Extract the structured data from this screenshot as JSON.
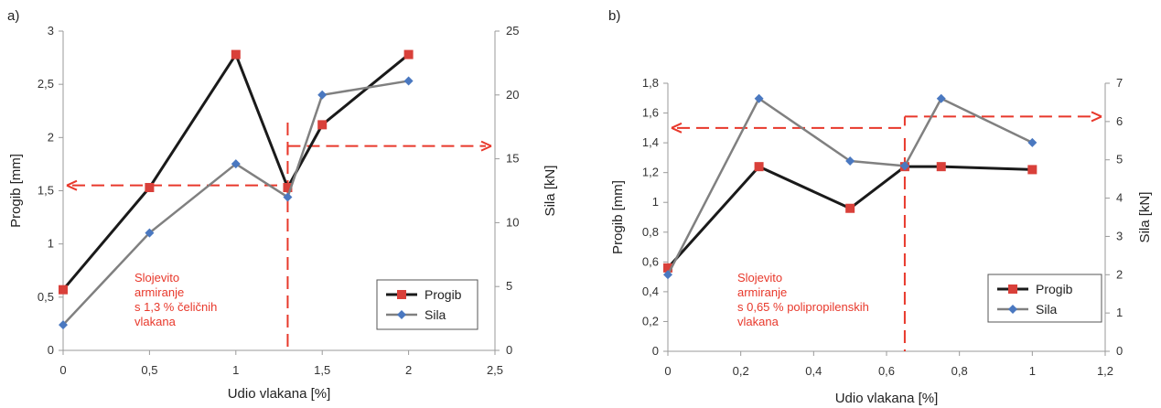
{
  "chart_data": [
    {
      "type": "line",
      "panel_label": "a)",
      "xlabel": "Udio vlakana [%]",
      "ylabel_left": "Progib [mm]",
      "ylabel_right": "Sila [kN]",
      "x_ticks": [
        "0",
        "0,5",
        "1",
        "1,5",
        "2",
        "2,5"
      ],
      "y_left_ticks": [
        "0",
        "0,5",
        "1",
        "1,5",
        "2",
        "2,5",
        "3"
      ],
      "y_right_ticks": [
        "0",
        "5",
        "10",
        "15",
        "20",
        "25"
      ],
      "xlim": [
        0,
        2.5
      ],
      "ylim_left": [
        0,
        3
      ],
      "ylim_right": [
        0,
        25
      ],
      "series": [
        {
          "name": "Progib",
          "axis": "left",
          "color": "#1a1a1a",
          "marker_color": "#d9403a",
          "marker": "square",
          "x": [
            0,
            0.5,
            1,
            1.3,
            1.5,
            2
          ],
          "y": [
            0.57,
            1.53,
            2.78,
            1.53,
            2.12,
            2.78
          ]
        },
        {
          "name": "Sila",
          "axis": "right",
          "color": "#808080",
          "marker_color": "#4a78c0",
          "marker": "diamond",
          "x": [
            0,
            0.5,
            1,
            1.3,
            1.5,
            2
          ],
          "y": [
            2.0,
            9.2,
            14.6,
            12.0,
            20.0,
            21.1
          ]
        }
      ],
      "annotation_lines": {
        "color": "#e8382b",
        "vertical_x": 1.3,
        "left_arrow_value": 1.55,
        "left_arrow_axis": "left",
        "right_arrow_value": 16.0,
        "right_arrow_axis": "right"
      },
      "annotation_text": [
        "Slojevito",
        "armiranje",
        "s 1,3 % čeličnih",
        "vlakana"
      ],
      "legend": {
        "position": "bottom-right",
        "entries": [
          "Progib",
          "Sila"
        ]
      }
    },
    {
      "type": "line",
      "panel_label": "b)",
      "xlabel": "Udio vlakana [%]",
      "ylabel_left": "Progib [mm]",
      "ylabel_right": "Sila [kN]",
      "x_ticks": [
        "0",
        "0,2",
        "0,4",
        "0,6",
        "0,8",
        "1",
        "1,2"
      ],
      "y_left_ticks": [
        "0",
        "0,2",
        "0,4",
        "0,6",
        "0,8",
        "1",
        "1,2",
        "1,4",
        "1,6",
        "1,8"
      ],
      "y_right_ticks": [
        "0",
        "1",
        "2",
        "3",
        "4",
        "5",
        "6",
        "7"
      ],
      "xlim": [
        0,
        1.2
      ],
      "ylim_left": [
        0,
        1.8
      ],
      "ylim_right": [
        0,
        7
      ],
      "series": [
        {
          "name": "Progib",
          "axis": "left",
          "color": "#1a1a1a",
          "marker_color": "#d9403a",
          "marker": "square",
          "x": [
            0,
            0.25,
            0.5,
            0.65,
            0.75,
            1
          ],
          "y": [
            0.56,
            1.24,
            0.96,
            1.24,
            1.24,
            1.22
          ]
        },
        {
          "name": "Sila",
          "axis": "right",
          "color": "#808080",
          "marker_color": "#4a78c0",
          "marker": "diamond",
          "x": [
            0,
            0.25,
            0.5,
            0.65,
            0.75,
            1
          ],
          "y": [
            2.0,
            6.6,
            4.97,
            4.84,
            6.6,
            5.45
          ]
        }
      ],
      "annotation_lines": {
        "color": "#e8382b",
        "vertical_x": 0.65,
        "left_arrow_value": 1.5,
        "left_arrow_axis": "left",
        "right_arrow_value": 6.13,
        "right_arrow_axis": "right"
      },
      "annotation_text": [
        "Slojevito",
        "armiranje",
        "s 0,65 % polipropilenskih",
        "vlakana"
      ],
      "legend": {
        "position": "bottom-right",
        "entries": [
          "Progib",
          "Sila"
        ]
      }
    }
  ]
}
